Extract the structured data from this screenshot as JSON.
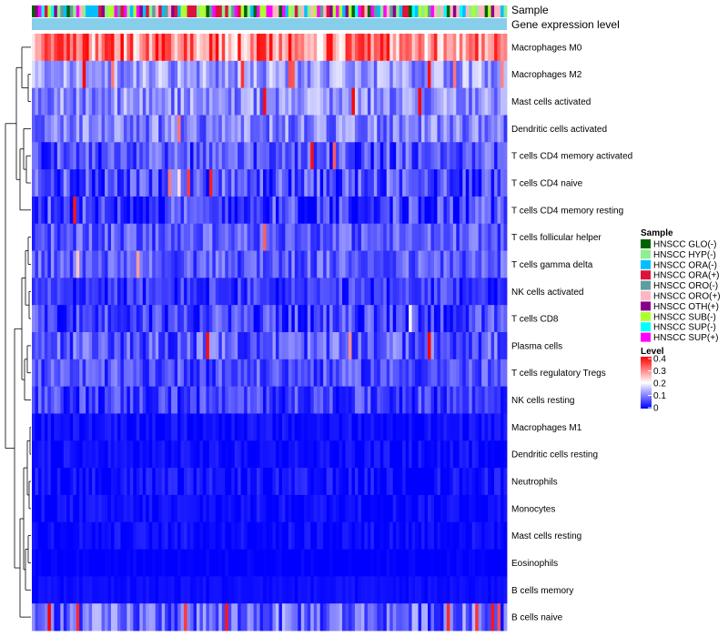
{
  "chart_data": {
    "type": "heatmap",
    "title": "",
    "n_samples": 150,
    "annotation_tracks": [
      "Sample",
      "Gene expression level"
    ],
    "rows": [
      {
        "label": "Macrophages M0",
        "mean": 0.3,
        "spread": 0.1,
        "spike_prob": 0.0
      },
      {
        "label": "Macrophages M2",
        "mean": 0.12,
        "spread": 0.06,
        "spike_prob": 0.04
      },
      {
        "label": "Mast cells activated",
        "mean": 0.11,
        "spread": 0.06,
        "spike_prob": 0.03
      },
      {
        "label": "Dendritic cells activated",
        "mean": 0.1,
        "spread": 0.06,
        "spike_prob": 0.02
      },
      {
        "label": "T cells CD4 memory activated",
        "mean": 0.06,
        "spread": 0.06,
        "spike_prob": 0.02
      },
      {
        "label": "T cells CD4 naive",
        "mean": 0.06,
        "spread": 0.07,
        "spike_prob": 0.02
      },
      {
        "label": "T cells CD4 memory resting",
        "mean": 0.05,
        "spread": 0.07,
        "spike_prob": 0.01
      },
      {
        "label": "T cells follicular helper",
        "mean": 0.07,
        "spread": 0.05,
        "spike_prob": 0.01
      },
      {
        "label": "T cells gamma delta",
        "mean": 0.07,
        "spread": 0.05,
        "spike_prob": 0.01
      },
      {
        "label": "NK cells activated",
        "mean": 0.04,
        "spread": 0.05,
        "spike_prob": 0.0
      },
      {
        "label": "T cells CD8",
        "mean": 0.05,
        "spread": 0.06,
        "spike_prob": 0.01
      },
      {
        "label": "Plasma cells",
        "mean": 0.07,
        "spread": 0.06,
        "spike_prob": 0.01
      },
      {
        "label": "T cells regulatory  Tregs",
        "mean": 0.06,
        "spread": 0.05,
        "spike_prob": 0.0
      },
      {
        "label": "NK cells resting",
        "mean": 0.05,
        "spread": 0.05,
        "spike_prob": 0.0
      },
      {
        "label": "Macrophages M1",
        "mean": 0.01,
        "spread": 0.02,
        "spike_prob": 0.0
      },
      {
        "label": "Dendritic cells resting",
        "mean": 0.01,
        "spread": 0.02,
        "spike_prob": 0.0
      },
      {
        "label": "Neutrophils",
        "mean": 0.01,
        "spread": 0.03,
        "spike_prob": 0.0
      },
      {
        "label": "Monocytes",
        "mean": 0.01,
        "spread": 0.02,
        "spike_prob": 0.0
      },
      {
        "label": "Mast cells resting",
        "mean": 0.01,
        "spread": 0.02,
        "spike_prob": 0.0
      },
      {
        "label": "Eosinophils",
        "mean": 0.0,
        "spread": 0.01,
        "spike_prob": 0.0
      },
      {
        "label": "B cells memory",
        "mean": 0.01,
        "spread": 0.01,
        "spike_prob": 0.0
      },
      {
        "label": "B cells naive",
        "mean": 0.08,
        "spread": 0.07,
        "spike_prob": 0.05
      }
    ],
    "sample_groups": [
      {
        "name": "HNSCC GLO(-)",
        "color": "#006400"
      },
      {
        "name": "HNSCC HYP(-)",
        "color": "#90ee90"
      },
      {
        "name": "HNSCC ORA(-)",
        "color": "#00bfff"
      },
      {
        "name": "HNSCC ORA(+)",
        "color": "#dc143c"
      },
      {
        "name": "HNSCC ORO(-)",
        "color": "#5f9ea0"
      },
      {
        "name": "HNSCC ORO(+)",
        "color": "#ffb6c1"
      },
      {
        "name": "HNSCC OTH(+)",
        "color": "#8b008b"
      },
      {
        "name": "HNSCC SUB(-)",
        "color": "#adff2f"
      },
      {
        "name": "HNSCC SUP(-)",
        "color": "#00ffff"
      },
      {
        "name": "HNSCC SUP(+)",
        "color": "#ff00ff"
      }
    ],
    "gene_expression_level_color": "#87ceeb",
    "color_scale": {
      "min": 0,
      "max": 0.4,
      "stops": [
        {
          "value": 0,
          "color": "#0000ff"
        },
        {
          "value": 0.2,
          "color": "#ffffff"
        },
        {
          "value": 0.4,
          "color": "#ff0000"
        }
      ]
    },
    "legend": {
      "sample_title": "Sample",
      "level_title": "Level",
      "ticks": [
        "0.4",
        "0.3",
        "0.2",
        "0.1",
        "0"
      ]
    }
  }
}
